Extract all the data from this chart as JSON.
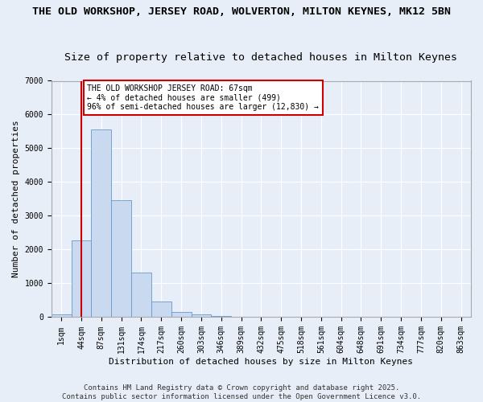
{
  "title_line1": "THE OLD WORKSHOP, JERSEY ROAD, WOLVERTON, MILTON KEYNES, MK12 5BN",
  "title_line2": "Size of property relative to detached houses in Milton Keynes",
  "xlabel": "Distribution of detached houses by size in Milton Keynes",
  "ylabel": "Number of detached properties",
  "categories": [
    "1sqm",
    "44sqm",
    "87sqm",
    "131sqm",
    "174sqm",
    "217sqm",
    "260sqm",
    "303sqm",
    "346sqm",
    "389sqm",
    "432sqm",
    "475sqm",
    "518sqm",
    "561sqm",
    "604sqm",
    "648sqm",
    "691sqm",
    "734sqm",
    "777sqm",
    "820sqm",
    "863sqm"
  ],
  "bar_values": [
    80,
    2280,
    5550,
    3460,
    1310,
    470,
    160,
    80,
    30,
    0,
    0,
    0,
    0,
    0,
    0,
    0,
    0,
    0,
    0,
    0,
    0
  ],
  "bar_color": "#c9d9f0",
  "bar_edge_color": "#6699cc",
  "background_color": "#e8eef8",
  "grid_color": "#ffffff",
  "vline_x": 1,
  "vline_color": "#cc0000",
  "annotation_text": "THE OLD WORKSHOP JERSEY ROAD: 67sqm\n← 4% of detached houses are smaller (499)\n96% of semi-detached houses are larger (12,830) →",
  "annotation_box_color": "#ffffff",
  "annotation_box_edgecolor": "#cc0000",
  "ylim": [
    0,
    7000
  ],
  "yticks": [
    0,
    1000,
    2000,
    3000,
    4000,
    5000,
    6000,
    7000
  ],
  "footnote": "Contains HM Land Registry data © Crown copyright and database right 2025.\nContains public sector information licensed under the Open Government Licence v3.0.",
  "title_fontsize": 9.5,
  "subtitle_fontsize": 9.5,
  "label_fontsize": 8,
  "tick_fontsize": 7,
  "annotation_fontsize": 7,
  "footnote_fontsize": 6.5
}
